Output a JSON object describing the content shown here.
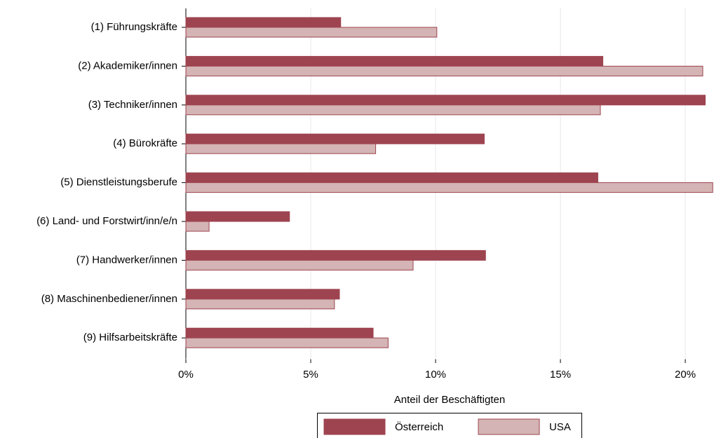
{
  "chart_data": {
    "type": "hbar",
    "x_label": "Anteil der Beschäftigten",
    "categories": [
      "(1) Führungskräfte",
      "(2) Akademiker/innen",
      "(3) Techniker/innen",
      "(4) Bürokräfte",
      "(5) Dienstleistungsberufe",
      "(6) Land- und Forstwirt/inn/e/n",
      "(7) Handwerker/innen",
      "(8) Maschinenbediener/innen",
      "(9) Hilfsarbeitskräfte"
    ],
    "series": [
      {
        "name": "Österreich",
        "color": "#9e4450",
        "values": [
          6.2,
          16.7,
          20.8,
          11.95,
          16.5,
          4.15,
          12.0,
          6.15,
          7.5
        ]
      },
      {
        "name": "USA",
        "color": "#d4b4b4",
        "values": [
          10.05,
          20.7,
          16.6,
          7.6,
          21.1,
          0.93,
          9.1,
          5.95,
          8.1
        ]
      }
    ],
    "xlim": [
      0,
      21.15
    ],
    "xticks": [
      {
        "value": 0,
        "label": "0%"
      },
      {
        "value": 5,
        "label": "5%"
      },
      {
        "value": 10,
        "label": "10%"
      },
      {
        "value": 15,
        "label": "15%"
      },
      {
        "value": 20,
        "label": "20%"
      }
    ],
    "grid": true
  }
}
